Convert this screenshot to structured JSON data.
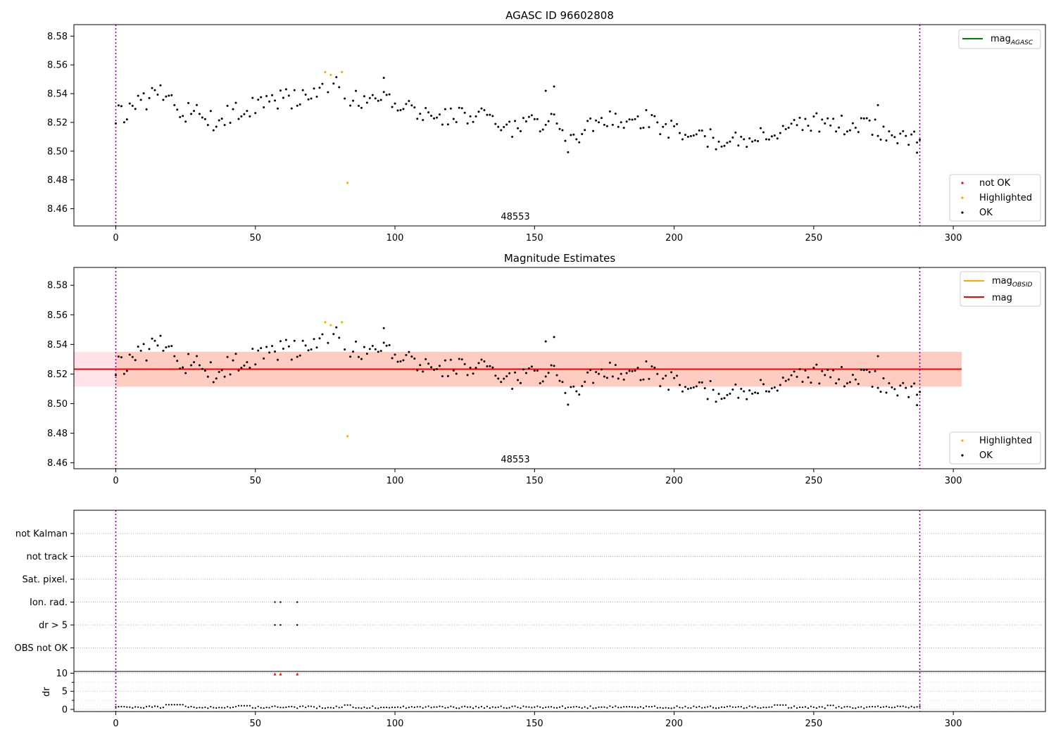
{
  "colors": {
    "ok": "#000000",
    "highlighted": "#ffa500",
    "not_ok": "#ff0000",
    "mag_agasc": "#008000",
    "mag_obsid": "#ffa500",
    "mag": "#ff0000",
    "obsid_marker": "#800080",
    "band_outer": "#ffc0cb",
    "band_inner": "#ffa07a"
  },
  "chart_data": [
    {
      "type": "scatter",
      "title": "AGASC ID 96602808",
      "xlim": [
        -15,
        333
      ],
      "ylim": [
        8.448,
        8.588
      ],
      "xticks": [
        0,
        50,
        100,
        150,
        200,
        250,
        300
      ],
      "yticks": [
        "8.46",
        "8.48",
        "8.50",
        "8.52",
        "8.54",
        "8.56",
        "8.58"
      ],
      "obsid_label": "48553",
      "obsid_range": [
        0,
        288
      ],
      "legend_lines": [
        {
          "name_main": "mag",
          "name_sub": "AGASC",
          "color_key": "mag_agasc"
        }
      ],
      "legend_points": [
        {
          "name": "not OK",
          "color_key": "not_ok"
        },
        {
          "name": "Highlighted",
          "color_key": "highlighted"
        },
        {
          "name": "OK",
          "color_key": "ok"
        }
      ],
      "highlighted": [
        [
          75,
          8.555
        ],
        [
          77,
          8.553
        ],
        [
          81,
          8.555
        ],
        [
          83,
          8.478
        ]
      ]
    },
    {
      "type": "scatter",
      "title": "Magnitude Estimates",
      "xlim": [
        -15,
        333
      ],
      "ylim": [
        8.456,
        8.592
      ],
      "xticks": [
        0,
        50,
        100,
        150,
        200,
        250,
        300
      ],
      "yticks": [
        "8.46",
        "8.48",
        "8.50",
        "8.52",
        "8.54",
        "8.56",
        "8.58"
      ],
      "obsid_label": "48553",
      "obsid_range": [
        0,
        288
      ],
      "mag": 8.5233,
      "band_outer": [
        8.5115,
        8.535
      ],
      "band_inner": [
        8.5115,
        8.535
      ],
      "band_xrange": [
        -15,
        303
      ],
      "legend_lines": [
        {
          "name_main": "mag",
          "name_sub": "OBSID",
          "color_key": "mag_obsid"
        },
        {
          "name_main": "mag",
          "name_sub": "",
          "color_key": "mag"
        }
      ],
      "legend_points": [
        {
          "name": "Highlighted",
          "color_key": "highlighted"
        },
        {
          "name": "OK",
          "color_key": "ok"
        }
      ],
      "highlighted": [
        [
          75,
          8.555
        ],
        [
          77,
          8.553
        ],
        [
          81,
          8.555
        ],
        [
          83,
          8.478
        ]
      ]
    },
    {
      "type": "scatter",
      "title": "",
      "xlim": [
        -15,
        333
      ],
      "xticks": [
        0,
        50,
        100,
        150,
        200,
        250,
        300
      ],
      "flag_categories": [
        "not Kalman",
        "not track",
        "Sat. pixel.",
        "Ion. rad.",
        "dr > 5",
        "OBS not OK"
      ],
      "flag_points": [
        {
          "category": "Ion. rad.",
          "x": [
            57,
            59,
            65
          ]
        },
        {
          "category": "dr > 5",
          "x": [
            57,
            59,
            65
          ]
        }
      ],
      "dr_ylabel": "dr",
      "dr_ylim": [
        -0.6,
        10.5
      ],
      "dr_yticks": [
        "0",
        "5",
        "10"
      ],
      "dr_minor_ticks": [
        2.5,
        7.5
      ],
      "dr_high_points": [
        [
          57,
          9.8
        ],
        [
          59,
          9.8
        ],
        [
          65,
          9.8
        ]
      ],
      "obsid_range": [
        0,
        288
      ]
    }
  ]
}
